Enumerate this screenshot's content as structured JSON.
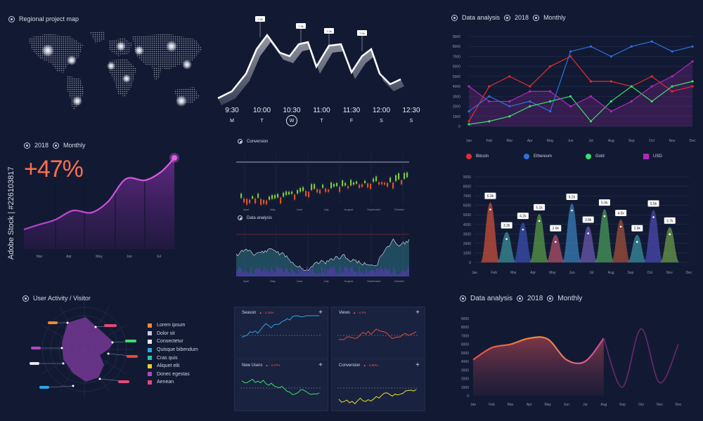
{
  "map": {
    "title": "Regional project map"
  },
  "timeline": {
    "times": [
      "9:30",
      "10:00",
      "10:30",
      "11:00",
      "11:30",
      "12:00",
      "12:30"
    ],
    "days": [
      "M",
      "T",
      "W",
      "T",
      "F",
      "S",
      "S"
    ],
    "callouts": [
      "7.5k",
      "7.3k",
      "7.2k",
      "7.0k"
    ],
    "highlight_day_index": 2
  },
  "top_right": {
    "title": "Data analysis",
    "year": "2018",
    "period": "Monthly",
    "legend": [
      {
        "name": "Bitcoin",
        "color": "#e32d2d"
      },
      {
        "name": "Ethereum",
        "color": "#2f6fe0"
      },
      {
        "name": "Gold",
        "color": "#3be06a"
      },
      {
        "name": "USD",
        "color": "#b02ab8"
      }
    ]
  },
  "growth": {
    "year": "2018",
    "period": "Monthly",
    "headline": "+47%"
  },
  "conversion": {
    "title": "Conversion"
  },
  "data_analysis_mid": {
    "title": "Data analysis"
  },
  "user_activity": {
    "title": "User Activity / Visitor",
    "legend": [
      {
        "label": "Lorem ipsum",
        "color": "#f08a2c"
      },
      {
        "label": "Dolor sit",
        "color": "#c9c9e8"
      },
      {
        "label": "Consectetur",
        "color": "#e8e8f0"
      },
      {
        "label": "Quisque bibendum",
        "color": "#2aa8e8"
      },
      {
        "label": "Cras quis",
        "color": "#2ac8a8"
      },
      {
        "label": "Aliquet elit",
        "color": "#e8d02a"
      },
      {
        "label": "Donec egestas",
        "color": "#b048c8"
      },
      {
        "label": "Aenean",
        "color": "#e84878"
      }
    ]
  },
  "mini_panels": [
    {
      "name": "Season",
      "delta": "▲ - 3.16%"
    },
    {
      "name": "Views",
      "delta": "▲ - 4.1%"
    },
    {
      "name": "New Users",
      "delta": "▲ - 2.27%"
    },
    {
      "name": "Conversion",
      "delta": "▲ - 3.80%"
    }
  ],
  "bottom_right": {
    "title": "Data analysis",
    "year": "2018",
    "period": "Monthly"
  },
  "chart_data": [
    {
      "id": "top_right_line",
      "type": "line",
      "categories": [
        "Jan",
        "Feb",
        "Mar",
        "Apr",
        "May",
        "Jun",
        "Jul",
        "Aug",
        "Sep",
        "Oct",
        "Nov",
        "Dec"
      ],
      "ylim": [
        0,
        9000
      ],
      "yticks": [
        0,
        1000,
        2000,
        3000,
        4000,
        5000,
        6000,
        7000,
        8000,
        9000
      ],
      "series": [
        {
          "name": "Bitcoin",
          "values": [
            500,
            4000,
            5000,
            4000,
            6000,
            7000,
            4500,
            4500,
            4000,
            5000,
            3500,
            4000
          ]
        },
        {
          "name": "Ethereum",
          "values": [
            1500,
            3000,
            2000,
            2500,
            1500,
            7500,
            8000,
            7000,
            8000,
            8500,
            7500,
            8000
          ]
        },
        {
          "name": "Gold",
          "values": [
            200,
            500,
            1000,
            2000,
            2500,
            3000,
            500,
            2500,
            4000,
            2500,
            4000,
            4500
          ]
        },
        {
          "name": "USD",
          "values": [
            4000,
            2500,
            2500,
            3500,
            3500,
            2000,
            3000,
            1500,
            2500,
            4000,
            5000,
            6500
          ]
        }
      ]
    },
    {
      "id": "growth_area",
      "type": "area",
      "categories": [
        "Mar",
        "Apr",
        "May",
        "Jun",
        "Jul"
      ],
      "values": [
        2.0,
        2.3,
        2.5,
        3.4,
        6.2
      ]
    },
    {
      "id": "peaks",
      "type": "area",
      "categories": [
        "Jan",
        "Feb",
        "Mar",
        "Apr",
        "May",
        "Jun",
        "Jul",
        "Aug",
        "Sep",
        "Oct",
        "Nov",
        "Dec"
      ],
      "ylim": [
        0,
        9000
      ],
      "yticks": [
        0,
        1000,
        2000,
        3000,
        4000,
        5000,
        6000,
        7000,
        8000,
        9000
      ],
      "series": [
        {
          "x": "Feb",
          "value": 6300,
          "label": "6.3k",
          "color": "#c8503a"
        },
        {
          "x": "Feb",
          "value": 3200,
          "label": "3.2k",
          "color": "#3a8f9a"
        },
        {
          "x": "Mar",
          "value": 4200,
          "label": "4.2k",
          "color": "#3a4fb0"
        },
        {
          "x": "Apr",
          "value": 5100,
          "label": "5.1k",
          "color": "#5a9a4a"
        },
        {
          "x": "May",
          "value": 2900,
          "label": "2.9k",
          "color": "#b0506a"
        },
        {
          "x": "Jun",
          "value": 6200,
          "label": "6.2k",
          "color": "#3a7fb8"
        },
        {
          "x": "Jul",
          "value": 3800,
          "label": "3.8k",
          "color": "#6a5ab0"
        },
        {
          "x": "Aug",
          "value": 5600,
          "label": "5.6k",
          "color": "#4a9a5a"
        },
        {
          "x": "Aug",
          "value": 4500,
          "label": "4.5k",
          "color": "#a0503a"
        },
        {
          "x": "Sep",
          "value": 2900,
          "label": "2.9k",
          "color": "#3a8fa0"
        },
        {
          "x": "Oct",
          "value": 5500,
          "label": "5.5k",
          "color": "#4a4ab0"
        },
        {
          "x": "Nov",
          "value": 3700,
          "label": "3.7k",
          "color": "#6a9a4a"
        }
      ]
    },
    {
      "id": "conversion_candles",
      "type": "bar",
      "categories": [
        "April",
        "May",
        "June",
        "July",
        "August",
        "September",
        "October"
      ]
    },
    {
      "id": "data_analysis_area",
      "type": "area",
      "categories": [
        "April",
        "May",
        "June",
        "July",
        "August",
        "September",
        "October"
      ]
    },
    {
      "id": "bottom_wave",
      "type": "area",
      "categories": [
        "Jan",
        "Feb",
        "Mar",
        "Apr",
        "May",
        "Jun",
        "Jul",
        "Aug",
        "Sep",
        "Oct",
        "Nov",
        "Dec"
      ],
      "ylim": [
        0,
        9000
      ],
      "yticks": [
        0,
        1000,
        2000,
        3000,
        4000,
        5000,
        6000,
        7000,
        8000,
        9000
      ],
      "series": [
        {
          "name": "filled",
          "values": [
            4200,
            5600,
            6000,
            6700,
            6600,
            4200,
            4000,
            6700,
            null,
            null,
            null,
            null
          ]
        },
        {
          "name": "outline",
          "values": [
            null,
            null,
            null,
            null,
            null,
            null,
            null,
            6700,
            1000,
            7800,
            1500,
            6000
          ]
        }
      ]
    },
    {
      "id": "radar",
      "type": "area",
      "categories": [
        "Lorem ipsum",
        "Dolor sit",
        "Consectetur",
        "Quisque bibendum",
        "Cras quis",
        "Aliquet elit",
        "Donec egestas",
        "Aenean"
      ]
    }
  ],
  "watermark": "Adobe Stock | #226103817",
  "colors": {
    "bg": "#121a33",
    "panel": "#19223f",
    "accent": "#ff6f4e"
  }
}
